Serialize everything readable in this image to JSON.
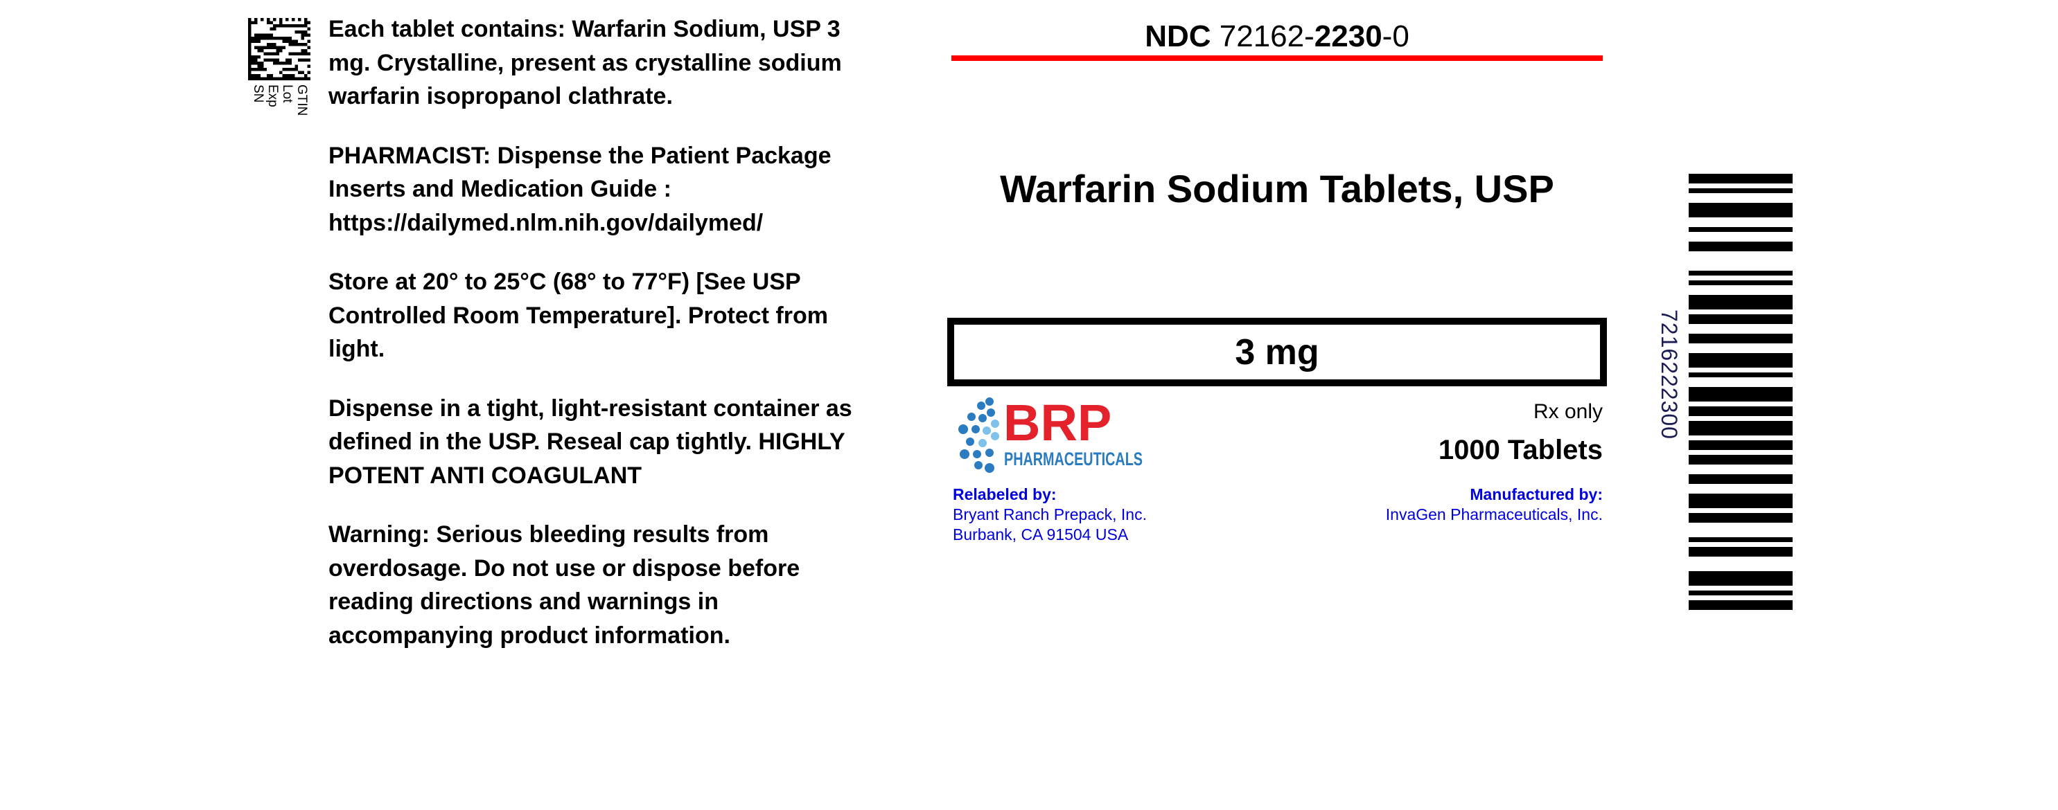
{
  "gs1_labels": [
    "GTIN",
    "Lot",
    "Exp",
    "SN"
  ],
  "left_panel": {
    "paragraphs": [
      [
        "Each tablet contains: Warfarin Sodium, USP 3",
        "mg. Crystalline, present as crystalline sodium",
        "warfarin isopropanol clathrate."
      ],
      [
        "PHARMACIST: Dispense the Patient Package",
        "Inserts and Medication Guide :",
        "https://dailymed.nlm.nih.gov/dailymed/"
      ],
      [
        "Store at 20° to 25°C (68° to 77°F) [See USP",
        "Controlled Room Temperature]. Protect from",
        "light."
      ],
      [
        "Dispense in a tight, light-resistant container as",
        "defined in the USP. Reseal cap tightly. HIGHLY",
        "POTENT ANTI COAGULANT"
      ],
      [
        "Warning: Serious bleeding results from",
        "overdosage. Do not use or dispose before",
        "reading directions and warnings in",
        "accompanying product information."
      ]
    ]
  },
  "ndc": {
    "prefix": "NDC",
    "labeler": "72162-",
    "product": "2230",
    "package": "-0"
  },
  "product_title": "Warfarin Sodium Tablets, USP",
  "strength": "3 mg",
  "logo": {
    "brand": "BRP",
    "subtitle": "PHARMACEUTICALS",
    "red": "#e3222b",
    "blue": "#2a7bbf"
  },
  "rx_only": "Rx only",
  "count": "1000 Tablets",
  "relabeler": {
    "heading": "Relabeled by:",
    "lines": [
      "Bryant Ranch Prepack, Inc.",
      "Burbank, CA 91504 USA"
    ]
  },
  "manufacturer": {
    "heading": "Manufactured by:",
    "lines": [
      "InvaGen Pharmaceuticals, Inc."
    ]
  },
  "barcode_number": "7216222300",
  "colors": {
    "rule": "#ff0000",
    "credit_text": "#0000dd"
  }
}
